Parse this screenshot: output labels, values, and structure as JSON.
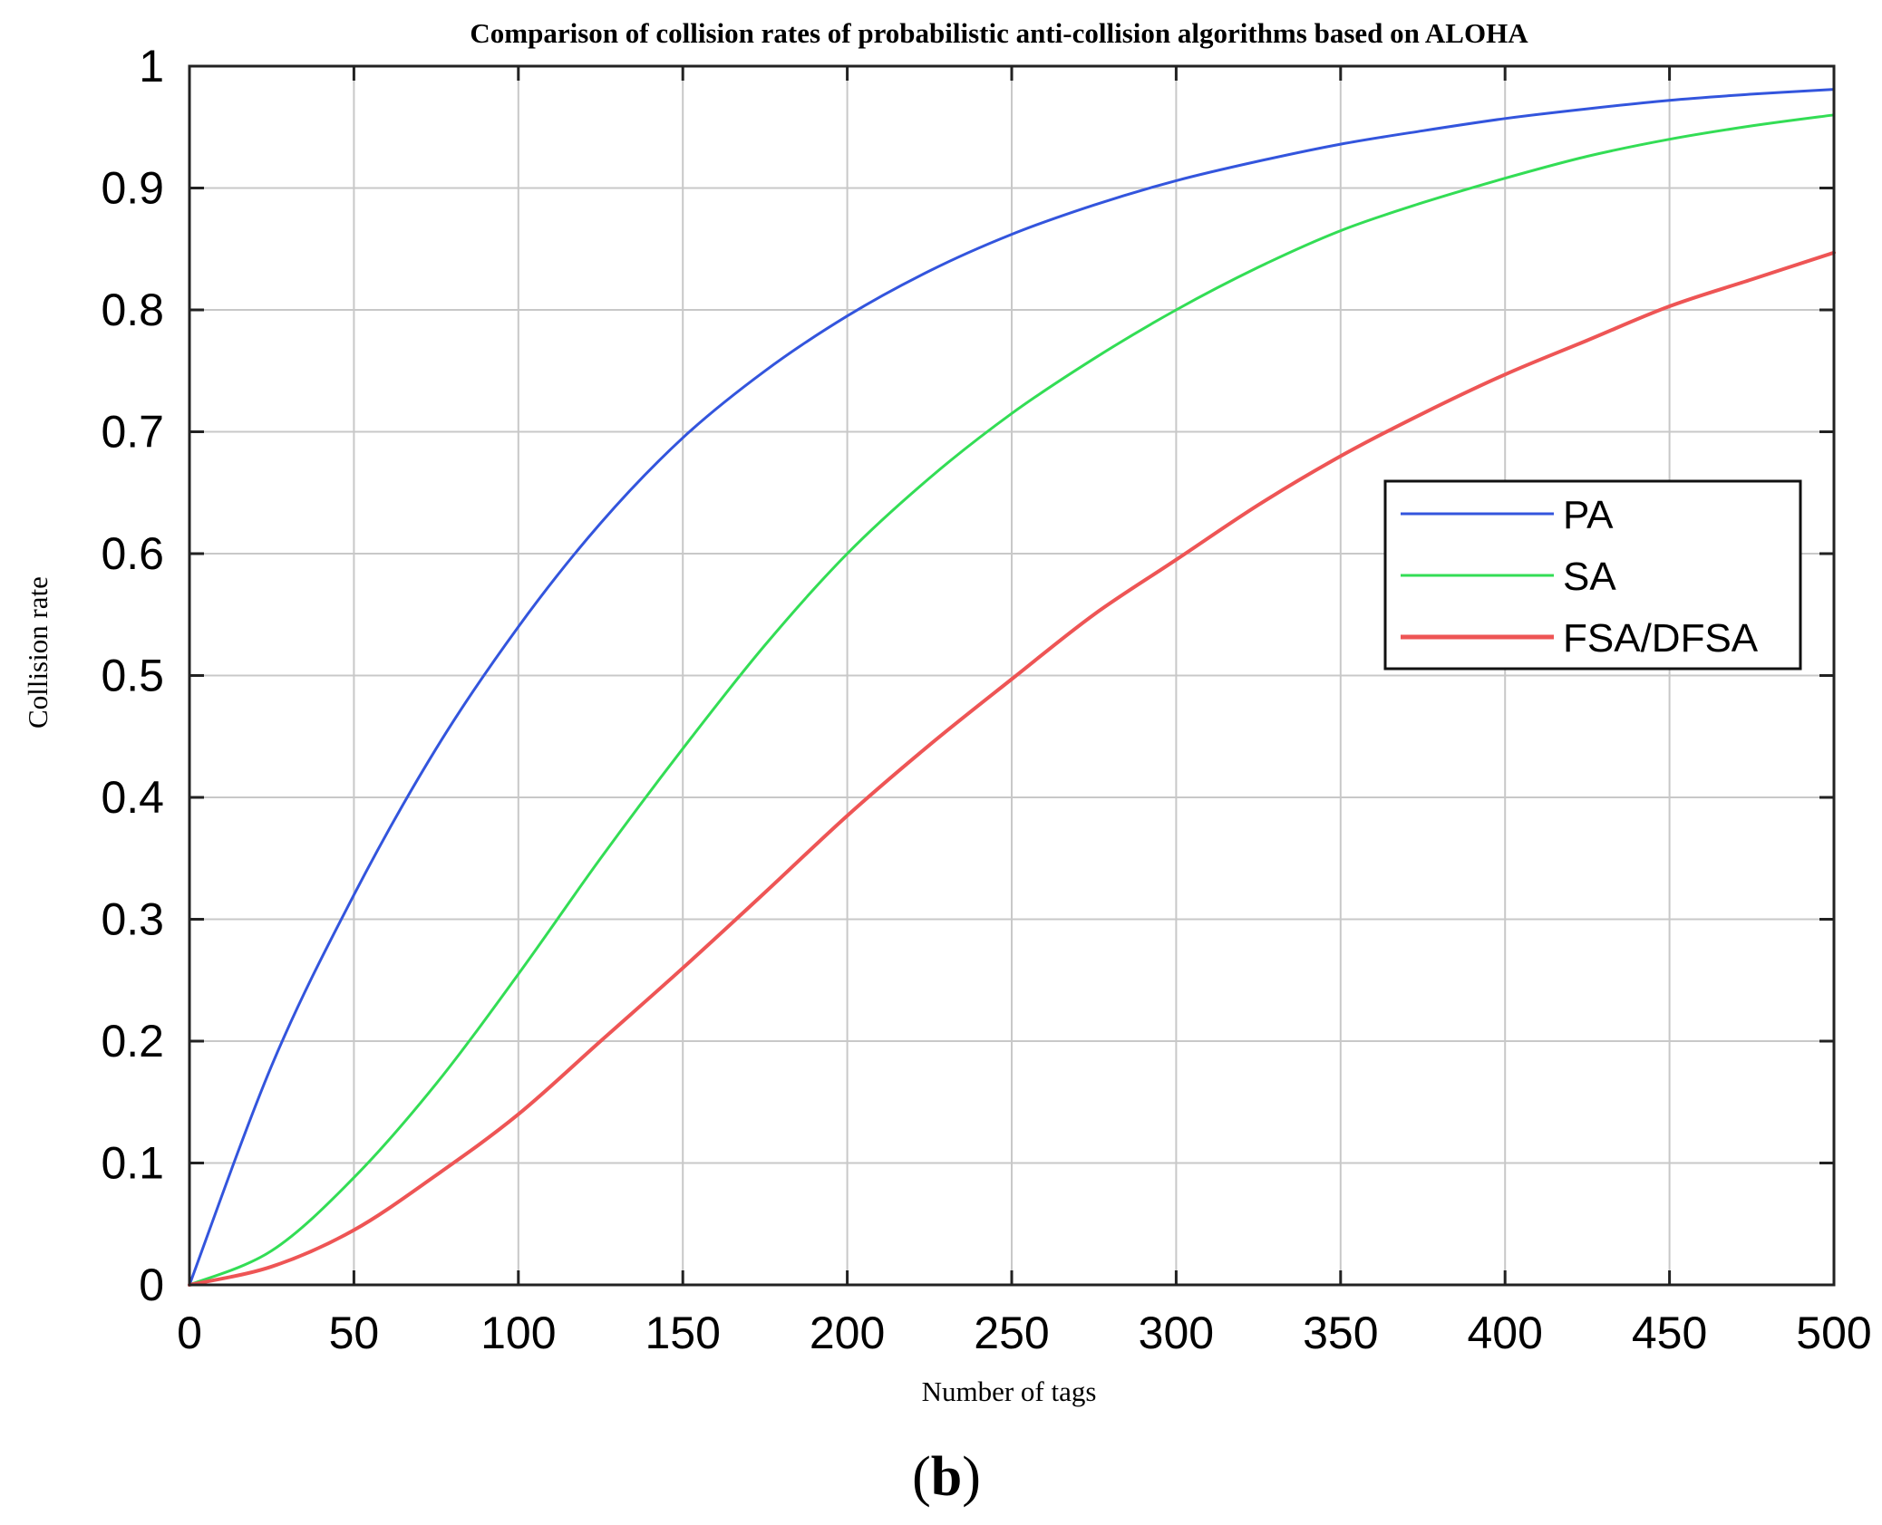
{
  "chart_data": {
    "type": "line",
    "title": "Comparison of collision rates of probabilistic anti-collision algorithms based on ALOHA",
    "xlabel": "Number of tags",
    "ylabel": "Collision rate",
    "panel_label": {
      "open": "(",
      "letter": "b",
      "close": ")"
    },
    "xlim": [
      0,
      500
    ],
    "ylim": [
      0,
      1
    ],
    "x_ticks": [
      0,
      50,
      100,
      150,
      200,
      250,
      300,
      350,
      400,
      450,
      500
    ],
    "y_ticks": [
      0,
      0.1,
      0.2,
      0.3,
      0.4,
      0.5,
      0.6,
      0.7,
      0.8,
      0.9,
      1
    ],
    "x_tick_labels": [
      "0",
      "50",
      "100",
      "150",
      "200",
      "250",
      "300",
      "350",
      "400",
      "450",
      "500"
    ],
    "y_tick_labels": [
      "0",
      "0.1",
      "0.2",
      "0.3",
      "0.4",
      "0.5",
      "0.6",
      "0.7",
      "0.8",
      "0.9",
      "1"
    ],
    "grid": true,
    "legend_position": "right-middle",
    "x": [
      0,
      25,
      50,
      75,
      100,
      125,
      150,
      175,
      200,
      225,
      250,
      275,
      300,
      325,
      350,
      375,
      400,
      425,
      450,
      475,
      500
    ],
    "series": [
      {
        "name": "PA",
        "color": "#3355dd",
        "values": [
          0,
          0.18,
          0.32,
          0.44,
          0.54,
          0.625,
          0.695,
          0.75,
          0.795,
          0.832,
          0.862,
          0.886,
          0.906,
          0.922,
          0.936,
          0.947,
          0.957,
          0.965,
          0.972,
          0.977,
          0.981
        ]
      },
      {
        "name": "SA",
        "color": "#33dd55",
        "values": [
          0,
          0.028,
          0.088,
          0.165,
          0.255,
          0.35,
          0.44,
          0.525,
          0.6,
          0.662,
          0.715,
          0.76,
          0.8,
          0.835,
          0.865,
          0.888,
          0.908,
          0.926,
          0.94,
          0.951,
          0.96
        ]
      },
      {
        "name": "FSA/DFSA",
        "color": "#ee5555",
        "values": [
          0,
          0.015,
          0.045,
          0.09,
          0.14,
          0.2,
          0.26,
          0.322,
          0.385,
          0.443,
          0.497,
          0.55,
          0.595,
          0.64,
          0.68,
          0.715,
          0.747,
          0.775,
          0.803,
          0.825,
          0.847
        ]
      }
    ]
  }
}
